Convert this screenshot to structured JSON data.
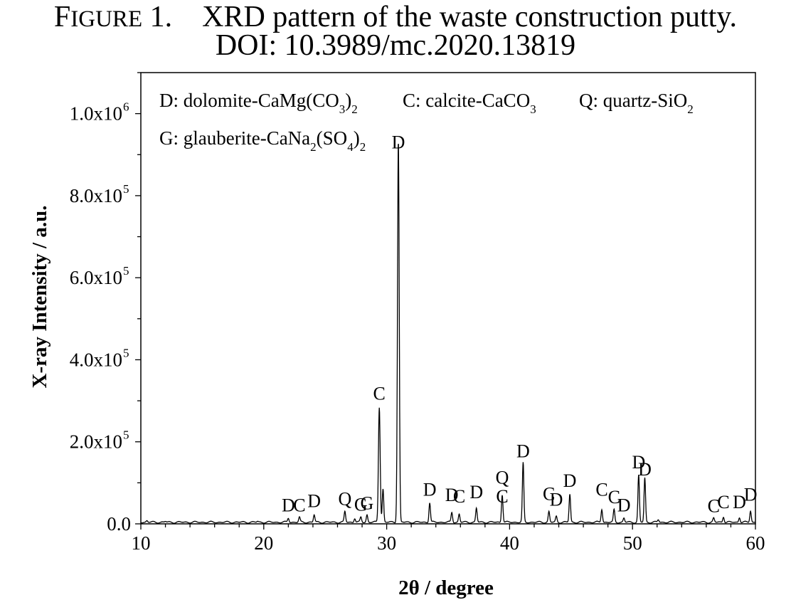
{
  "figure": {
    "label_initial": "F",
    "label_rest": "IGURE",
    "label_number": "1.",
    "caption": "XRD pattern of the waste construction putty.",
    "doi": "DOI: 10.3989/mc.2020.13819"
  },
  "legend": {
    "line1": [
      {
        "text": "D: dolomite-CaMg(CO",
        "sub": "3",
        "after": ")",
        "sub2": "2"
      },
      {
        "text": "C: calcite-CaCO",
        "sub": "3"
      },
      {
        "text": "Q: quartz-SiO",
        "sub": "2"
      }
    ],
    "line2": [
      {
        "text": "G: glauberite-CaNa",
        "sub": "2",
        "after": "(SO",
        "sub2": "4",
        "after2": ")",
        "sub3": "2"
      }
    ]
  },
  "chart_data": {
    "type": "line",
    "xlabel": "2θ / degree",
    "ylabel": "X-ray Intensity / a.u.",
    "xlim": [
      10,
      60
    ],
    "ylim": [
      0,
      1100000
    ],
    "xticks": [
      10,
      20,
      30,
      40,
      50,
      60
    ],
    "yticks": [
      {
        "value": 0,
        "label": "0.0"
      },
      {
        "value": 200000,
        "mant": "2.0x10",
        "exp": "5"
      },
      {
        "value": 400000,
        "mant": "4.0x10",
        "exp": "5"
      },
      {
        "value": 600000,
        "mant": "6.0x10",
        "exp": "5"
      },
      {
        "value": 800000,
        "mant": "8.0x10",
        "exp": "5"
      },
      {
        "value": 1000000,
        "mant": "1.0x10",
        "exp": "6"
      }
    ],
    "baseline": 4000,
    "peaks": [
      {
        "x": 10.5,
        "y": 8000
      },
      {
        "x": 12.0,
        "y": 6000
      },
      {
        "x": 19.5,
        "y": 6000
      },
      {
        "x": 22.0,
        "y": 14000,
        "label": "D",
        "ly": 20000
      },
      {
        "x": 22.9,
        "y": 16000,
        "label": "C",
        "ly": 20000
      },
      {
        "x": 24.1,
        "y": 22000,
        "label": "D",
        "ly": 30000
      },
      {
        "x": 26.6,
        "y": 30000,
        "label": "Q",
        "ly": 36000
      },
      {
        "x": 27.4,
        "y": 14000
      },
      {
        "x": 27.9,
        "y": 16000,
        "label": "G",
        "ly": 22000
      },
      {
        "x": 28.4,
        "y": 22000,
        "label": "G",
        "ly": 25000
      },
      {
        "x": 29.4,
        "y": 285000,
        "label": "C",
        "ly": 292000
      },
      {
        "x": 29.7,
        "y": 85000
      },
      {
        "x": 30.95,
        "y": 935000,
        "label": "D",
        "ly": 905000
      },
      {
        "x": 33.5,
        "y": 52000,
        "label": "D",
        "ly": 58000
      },
      {
        "x": 35.3,
        "y": 28000,
        "label": "D",
        "ly": 45000
      },
      {
        "x": 35.9,
        "y": 24000,
        "label": "C",
        "ly": 42000
      },
      {
        "x": 37.3,
        "y": 38000,
        "label": "D",
        "ly": 52000
      },
      {
        "x": 39.4,
        "y": 38000,
        "label": "C",
        "ly": 42000
      },
      {
        "x": 39.4,
        "y": 38000,
        "label": "Q",
        "ly": 88000
      },
      {
        "x": 41.1,
        "y": 148000,
        "label": "D",
        "ly": 152000
      },
      {
        "x": 43.2,
        "y": 30000,
        "label": "C",
        "ly": 48000
      },
      {
        "x": 43.8,
        "y": 18000,
        "label": "D",
        "ly": 34000
      },
      {
        "x": 44.9,
        "y": 72000,
        "label": "D",
        "ly": 80000
      },
      {
        "x": 47.5,
        "y": 36000,
        "label": "C",
        "ly": 58000
      },
      {
        "x": 48.5,
        "y": 34000,
        "label": "C",
        "ly": 40000
      },
      {
        "x": 49.3,
        "y": 14000,
        "label": "D",
        "ly": 20000
      },
      {
        "x": 50.5,
        "y": 118000,
        "label": "D",
        "ly": 125000
      },
      {
        "x": 51.0,
        "y": 112000,
        "label": "D",
        "ly": 108000
      },
      {
        "x": 52.1,
        "y": 10000
      },
      {
        "x": 56.6,
        "y": 14000,
        "label": "C",
        "ly": 18000
      },
      {
        "x": 57.4,
        "y": 18000,
        "label": "C",
        "ly": 28000
      },
      {
        "x": 58.7,
        "y": 16000,
        "label": "D",
        "ly": 28000
      },
      {
        "x": 59.6,
        "y": 32000,
        "label": "D",
        "ly": 46000
      }
    ]
  }
}
